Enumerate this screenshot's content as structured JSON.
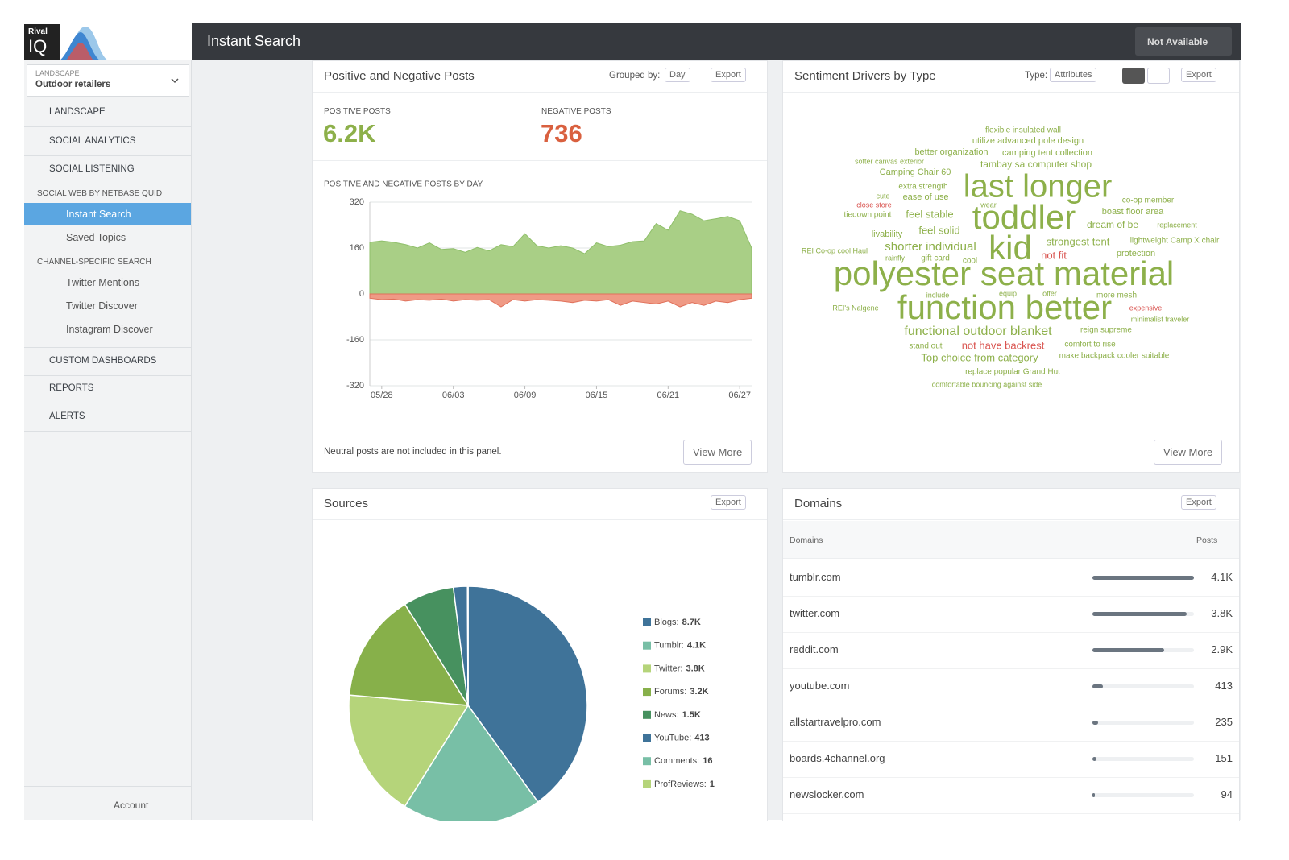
{
  "header": {
    "logo_top": "Rival",
    "logo_bottom": "IQ",
    "title": "Instant Search",
    "filter_button": "Not Available"
  },
  "sidebar": {
    "selector_label": "LANDSCAPE",
    "selector_value": "Outdoor retailers",
    "menu": [
      "LANDSCAPE",
      "SOCIAL ANALYTICS",
      "SOCIAL LISTENING"
    ],
    "listening_group": "SOCIAL WEB BY NETBASE QUID",
    "listening_items": [
      "Instant Search",
      "Saved Topics"
    ],
    "channel_group": "CHANNEL-SPECIFIC SEARCH",
    "channel_items": [
      "Twitter Mentions",
      "Twitter Discover",
      "Instagram Discover"
    ],
    "menu_bottom": [
      "CUSTOM DASHBOARDS",
      "REPORTS",
      "ALERTS"
    ],
    "account": "Account"
  },
  "posts_panel": {
    "title": "Positive and Negative Posts",
    "grouped_by_label": "Grouped by:",
    "grouped_by": "Day",
    "export": "Export",
    "positive_label": "POSITIVE POSTS",
    "positive_value": "6.2K",
    "negative_label": "NEGATIVE POSTS",
    "negative_value": "736",
    "footnote": "Neutral posts are not included in this panel.",
    "view_more": "View More"
  },
  "drivers_panel": {
    "title": "Sentiment Drivers by Type",
    "type_label": "Type:",
    "type": "Attributes",
    "export": "Export",
    "view_more": "View More",
    "words": [
      {
        "text": "flexible insulated wall",
        "color": "#8db04a"
      },
      {
        "text": "utilize advanced pole design",
        "color": "#8db04a"
      },
      {
        "text": "better organization",
        "color": "#8db04a"
      },
      {
        "text": "camping tent collection",
        "color": "#8db04a"
      },
      {
        "text": "softer canvas exterior",
        "color": "#8db04a"
      },
      {
        "text": "tambay sa computer shop",
        "color": "#8db04a"
      },
      {
        "text": "Camping Chair 60",
        "color": "#8db04a"
      },
      {
        "text": "extra strength",
        "color": "#8db04a"
      },
      {
        "text": "last longer",
        "color": "#8db04a"
      },
      {
        "text": "co-op member",
        "color": "#8db04a"
      },
      {
        "text": "cute",
        "color": "#8db04a"
      },
      {
        "text": "ease of use",
        "color": "#8db04a"
      },
      {
        "text": "close store",
        "color": "#d9534f"
      },
      {
        "text": "wear",
        "color": "#8db04a"
      },
      {
        "text": "tiedown point",
        "color": "#8db04a"
      },
      {
        "text": "feel stable",
        "color": "#8db04a"
      },
      {
        "text": "toddler",
        "color": "#8db04a"
      },
      {
        "text": "boast floor area",
        "color": "#8db04a"
      },
      {
        "text": "dream of be",
        "color": "#8db04a"
      },
      {
        "text": "replacement",
        "color": "#8db04a"
      },
      {
        "text": "livability",
        "color": "#8db04a"
      },
      {
        "text": "feel solid",
        "color": "#8db04a"
      },
      {
        "text": "strongest tent",
        "color": "#8db04a"
      },
      {
        "text": "lightweight Camp X chair",
        "color": "#8db04a"
      },
      {
        "text": "REI Co-op cool Haul",
        "color": "#8db04a"
      },
      {
        "text": "shorter individual",
        "color": "#8db04a"
      },
      {
        "text": "kid",
        "color": "#8db04a"
      },
      {
        "text": "protection",
        "color": "#8db04a"
      },
      {
        "text": "rainfly",
        "color": "#8db04a"
      },
      {
        "text": "gift card",
        "color": "#8db04a"
      },
      {
        "text": "cool",
        "color": "#8db04a"
      },
      {
        "text": "not fit",
        "color": "#d9534f"
      },
      {
        "text": "polyester seat material",
        "color": "#8db04a"
      },
      {
        "text": "include",
        "color": "#8db04a"
      },
      {
        "text": "equip",
        "color": "#8db04a"
      },
      {
        "text": "offer",
        "color": "#8db04a"
      },
      {
        "text": "more mesh",
        "color": "#8db04a"
      },
      {
        "text": "REI's Nalgene",
        "color": "#8db04a"
      },
      {
        "text": "function better",
        "color": "#8db04a"
      },
      {
        "text": "expensive",
        "color": "#d9534f"
      },
      {
        "text": "minimalist traveler",
        "color": "#8db04a"
      },
      {
        "text": "functional outdoor blanket",
        "color": "#8db04a"
      },
      {
        "text": "reign supreme",
        "color": "#8db04a"
      },
      {
        "text": "stand out",
        "color": "#8db04a"
      },
      {
        "text": "not have backrest",
        "color": "#d9534f"
      },
      {
        "text": "comfort to rise",
        "color": "#8db04a"
      },
      {
        "text": "Top choice from category",
        "color": "#8db04a"
      },
      {
        "text": "make backpack cooler suitable",
        "color": "#8db04a"
      },
      {
        "text": "replace popular Grand Hut",
        "color": "#8db04a"
      },
      {
        "text": "comfortable bouncing against side",
        "color": "#8db04a"
      }
    ]
  },
  "sources_panel": {
    "title": "Sources",
    "export": "Export"
  },
  "domains_panel": {
    "title": "Domains",
    "export": "Export",
    "col_domain": "Domains",
    "col_posts": "Posts",
    "bar_color": "#6b7580",
    "rows": [
      {
        "domain": "tumblr.com",
        "value": 4100,
        "value_label": "4.1K"
      },
      {
        "domain": "twitter.com",
        "value": 3800,
        "value_label": "3.8K"
      },
      {
        "domain": "reddit.com",
        "value": 2900,
        "value_label": "2.9K"
      },
      {
        "domain": "youtube.com",
        "value": 413,
        "value_label": "413"
      },
      {
        "domain": "allstartravelpro.com",
        "value": 235,
        "value_label": "235"
      },
      {
        "domain": "boards.4channel.org",
        "value": 151,
        "value_label": "151"
      },
      {
        "domain": "newslocker.com",
        "value": 94,
        "value_label": "94"
      }
    ]
  },
  "chart_data": [
    {
      "type": "area",
      "title": "POSITIVE AND NEGATIVE POSTS BY DAY",
      "categories": [
        null,
        "05/28",
        null,
        null,
        null,
        null,
        null,
        "06/03",
        null,
        null,
        null,
        null,
        null,
        "06/09",
        null,
        null,
        null,
        null,
        null,
        "06/15",
        null,
        null,
        null,
        null,
        null,
        "06/21",
        null,
        null,
        null,
        null,
        null,
        "06/27",
        null
      ],
      "series": [
        {
          "color": "#a9cf86",
          "line": "#8fbf6a",
          "values": [
            180,
            185,
            180,
            172,
            160,
            178,
            155,
            158,
            145,
            162,
            150,
            172,
            165,
            210,
            168,
            160,
            168,
            160,
            140,
            178,
            165,
            170,
            182,
            185,
            245,
            222,
            290,
            278,
            255,
            262,
            270,
            255,
            160
          ]
        },
        {
          "color": "#ef9a85",
          "line": "#e0705a",
          "values": [
            -15,
            -20,
            -18,
            -25,
            -20,
            -22,
            -18,
            -25,
            -20,
            -22,
            -20,
            -45,
            -20,
            -25,
            -20,
            -22,
            -25,
            -30,
            -22,
            -25,
            -20,
            -40,
            -25,
            -30,
            -35,
            -25,
            -45,
            -30,
            -40,
            -25,
            -30,
            -20,
            -15
          ]
        }
      ],
      "ylim": [
        -320,
        320
      ],
      "yticks": [
        -320,
        -160,
        0,
        160,
        320
      ],
      "grid": true
    },
    {
      "type": "pie",
      "categories": [
        "Blogs:",
        "Tumblr:",
        "Twitter:",
        "Forums:",
        "News:",
        "YouTube:",
        "Comments:",
        "ProfReviews:"
      ],
      "values": [
        8700,
        4100,
        3800,
        3200,
        1500,
        413,
        16,
        1
      ],
      "value_labels": [
        "8.7K",
        "4.1K",
        "3.8K",
        "3.2K",
        "1.5K",
        "413",
        "16",
        "1"
      ],
      "colors": [
        "#3f7399",
        "#78bfa6",
        "#b5d47a",
        "#87b04a",
        "#47915f",
        "#3f7399",
        "#78bfa6",
        "#b5d47a"
      ]
    }
  ]
}
